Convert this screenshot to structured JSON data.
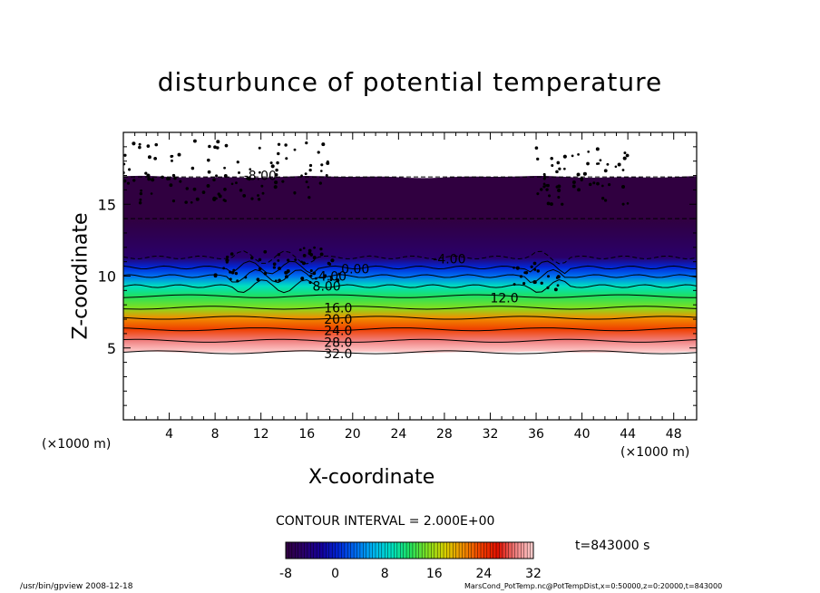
{
  "chart_data": {
    "type": "heatmap",
    "title": "disturbunce of potential temperature",
    "xlabel": "X-coordinate",
    "ylabel": "Z-coordinate",
    "x_unit_label": "(×1000 m)",
    "xlim": [
      0,
      50
    ],
    "ylim": [
      0,
      20
    ],
    "x_ticks": [
      4,
      8,
      12,
      16,
      20,
      24,
      28,
      32,
      36,
      40,
      44,
      48
    ],
    "y_ticks": [
      5,
      10,
      15
    ],
    "colorbar": {
      "min": -8,
      "max": 32,
      "tick_labels": [
        "-8",
        "0",
        "8",
        "16",
        "24",
        "32"
      ],
      "tick_values": [
        -8,
        0,
        8,
        16,
        24,
        32
      ]
    },
    "contour_interval_text": "CONTOUR INTERVAL = 2.000E+00",
    "contour_labels": [
      {
        "text": "-8.00",
        "x": 10.5,
        "z": 17.0
      },
      {
        "text": "-4.00",
        "x": 27.0,
        "z": 11.2
      },
      {
        "text": "0.00",
        "x": 19.0,
        "z": 10.5
      },
      {
        "text": "4.00",
        "x": 17.0,
        "z": 10.0
      },
      {
        "text": "8.00",
        "x": 16.5,
        "z": 9.3
      },
      {
        "text": "12.0",
        "x": 32.0,
        "z": 8.5
      },
      {
        "text": "16.0",
        "x": 17.5,
        "z": 7.8
      },
      {
        "text": "20.0",
        "x": 17.5,
        "z": 7.0
      },
      {
        "text": "24.0",
        "x": 17.5,
        "z": 6.2
      },
      {
        "text": "28.0",
        "x": 17.5,
        "z": 5.4
      },
      {
        "text": "32.0",
        "x": 17.5,
        "z": 4.6
      }
    ],
    "field_profile": [
      {
        "z": 4.7,
        "value": 32
      },
      {
        "z": 5.5,
        "value": 28
      },
      {
        "z": 6.3,
        "value": 24
      },
      {
        "z": 7.1,
        "value": 20
      },
      {
        "z": 7.8,
        "value": 16
      },
      {
        "z": 8.6,
        "value": 12
      },
      {
        "z": 9.3,
        "value": 8
      },
      {
        "z": 10.0,
        "value": 4
      },
      {
        "z": 10.6,
        "value": 0
      },
      {
        "z": 11.3,
        "value": -4
      },
      {
        "z": 14.0,
        "value": -7
      },
      {
        "z": 16.9,
        "value": -8
      }
    ],
    "grid": false,
    "legend": "bottom colorbar"
  },
  "time_label": "t=843000 s",
  "footer_left": "/usr/bin/gpview  2008-12-18",
  "footer_right": "MarsCond_PotTemp.nc@PotTempDist,x=0:50000,z=0:20000,t=843000",
  "colors": {
    "field_palette": [
      "#300040",
      "#2a006a",
      "#14009a",
      "#0028d8",
      "#0070f0",
      "#00b8f0",
      "#00e0c0",
      "#20e060",
      "#80e020",
      "#d8d000",
      "#f09000",
      "#f04000",
      "#e01000",
      "#f08080",
      "#ffd0d0"
    ]
  }
}
